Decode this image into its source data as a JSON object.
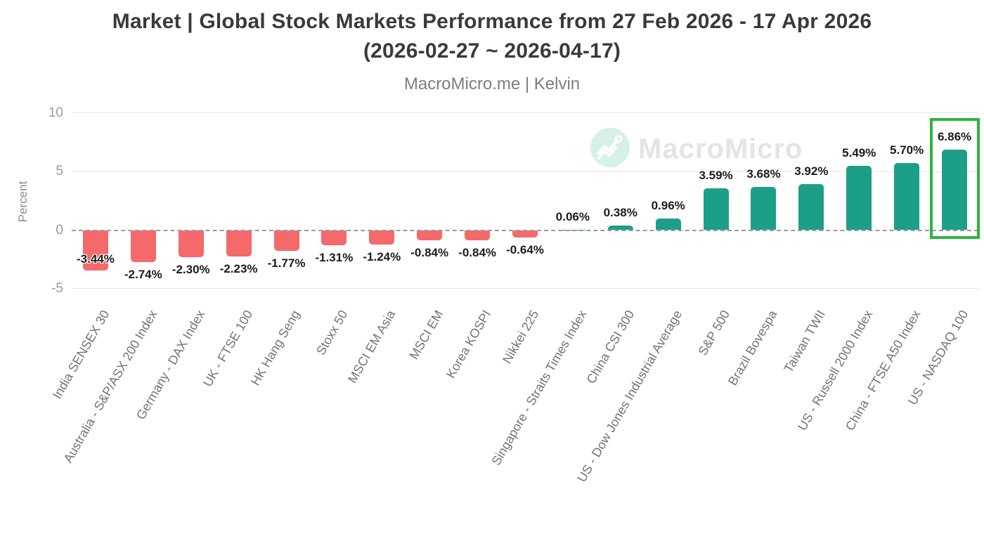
{
  "header": {
    "title_line1": "Market | Global Stock Markets Performance from 27 Feb 2026 - 17 Apr 2026",
    "title_line2": "(2026-02-27 ~ 2026-04-17)",
    "subtitle": "MacroMicro.me | Kelvin"
  },
  "watermark": {
    "brand": "MacroMicro"
  },
  "chart_data": {
    "type": "bar",
    "title": "Market | Global Stock Markets Performance from 27 Feb 2026 - 17 Apr 2026 (2026-02-27 ~ 2026-04-17)",
    "subtitle": "MacroMicro.me | Kelvin",
    "xlabel": "",
    "ylabel": "Percent",
    "ylim": [
      -5,
      10
    ],
    "yticks": [
      10,
      5,
      0,
      -5
    ],
    "grid": true,
    "legend": "none",
    "categories": [
      "India SENSEX 30",
      "Australia - S&P/ASX 200 Index",
      "Germany - DAX Index",
      "UK - FTSE 100",
      "HK Hang Seng",
      "Stoxx 50",
      "MSCI EM Asia",
      "MSCI EM",
      "Korea KOSPI",
      "Nikkei 225",
      "Singapore - Straits Times Index",
      "China CSI 300",
      "US - Dow Jones Industrial Average",
      "S&P 500",
      "Brazil Bovespa",
      "Taiwan TWII",
      "US - Russell 2000 Index",
      "China - FTSE A50 Index",
      "US - NASDAQ 100"
    ],
    "values": [
      -3.44,
      -2.74,
      -2.3,
      -2.23,
      -1.77,
      -1.31,
      -1.24,
      -0.84,
      -0.84,
      -0.64,
      0.06,
      0.38,
      0.96,
      3.59,
      3.68,
      3.92,
      5.49,
      5.7,
      6.86
    ],
    "labels": [
      "-3.44%",
      "-2.74%",
      "-2.30%",
      "-2.23%",
      "-1.77%",
      "-1.31%",
      "-1.24%",
      "-0.84%",
      "-0.84%",
      "-0.64%",
      "0.06%",
      "0.38%",
      "0.96%",
      "3.59%",
      "3.68%",
      "3.92%",
      "5.49%",
      "5.70%",
      "6.86%"
    ],
    "colors": {
      "positive_bar": "#1d9f87",
      "negative_bar": "#f5696b",
      "highlight_box": "#2db53c"
    },
    "highlight": {
      "category": "US - NASDAQ 100",
      "index": 18,
      "label": "6.86%"
    }
  }
}
